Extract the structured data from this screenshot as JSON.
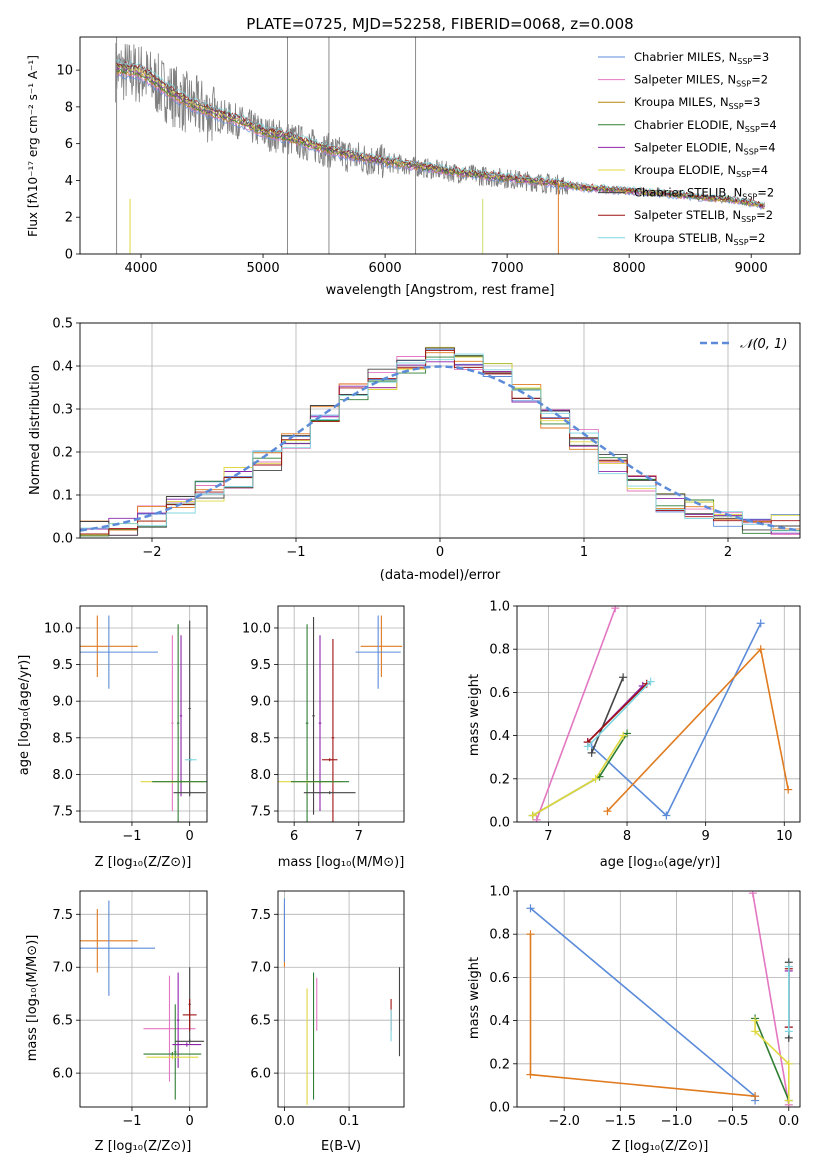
{
  "figure": {
    "title": "PLATE=0725, MJD=52258, FIBERID=0068, z=0.008",
    "panel_spectrum": {
      "xlabel": "wavelength [Angstrom, rest frame]",
      "ylabel": "Flux [fλ10⁻¹⁷ erg cm⁻² s⁻¹ A⁻¹]",
      "xticks": [
        "4000",
        "5000",
        "6000",
        "7000",
        "8000",
        "9000"
      ],
      "yticks": [
        "0",
        "2",
        "4",
        "6",
        "8",
        "10"
      ]
    },
    "panel_hist": {
      "xlabel": "(data-model)/error",
      "ylabel": "Normed distribution",
      "xticks": [
        "−2",
        "−1",
        "0",
        "1",
        "2"
      ],
      "yticks": [
        "0.0",
        "0.1",
        "0.2",
        "0.3",
        "0.4",
        "0.5"
      ],
      "legend": "𝒩(0, 1)"
    },
    "panel_age_Z": {
      "xlabel": "Z [log₁₀(Z/Z⊙)]",
      "ylabel": "age  [log₁₀(age/yr)]",
      "xticks": [
        "−1",
        "0"
      ],
      "yticks": [
        "7.5",
        "8.0",
        "8.5",
        "9.0",
        "9.5",
        "10.0"
      ]
    },
    "panel_age_mass": {
      "xlabel": "mass [log₁₀(M/M⊙)]",
      "xticks": [
        "6",
        "7"
      ],
      "yticks": [
        "7.5",
        "8.0",
        "8.5",
        "9.0",
        "9.5",
        "10.0"
      ]
    },
    "panel_mw_age": {
      "xlabel": "age  [log₁₀(age/yr)]",
      "ylabel": "mass weight",
      "xticks": [
        "7",
        "8",
        "9",
        "10"
      ],
      "yticks": [
        "0.0",
        "0.2",
        "0.4",
        "0.6",
        "0.8",
        "1.0"
      ]
    },
    "panel_mass_Z": {
      "xlabel": "Z [log₁₀(Z/Z⊙)]",
      "ylabel": "mass [log₁₀(M/M⊙)]",
      "xticks": [
        "−1",
        "0"
      ],
      "yticks": [
        "6.0",
        "6.5",
        "7.0",
        "7.5"
      ]
    },
    "panel_mass_ebv": {
      "xlabel": "E(B-V)",
      "xticks": [
        "0.0",
        "0.1"
      ],
      "yticks": [
        "6.0",
        "6.5",
        "7.0",
        "7.5"
      ]
    },
    "panel_mw_Z": {
      "xlabel": "Z [log₁₀(Z/Z⊙)]",
      "ylabel": "mass weight",
      "xticks": [
        "−2.0",
        "−1.5",
        "−1.0",
        "−0.5",
        "0.0"
      ],
      "yticks": [
        "0.0",
        "0.2",
        "0.4",
        "0.6",
        "0.8",
        "1.0"
      ]
    }
  },
  "chart_data": [
    {
      "type": "line",
      "title": "PLATE=0725, MJD=52258, FIBERID=0068, z=0.008",
      "xlabel": "wavelength [Angstrom, rest frame]",
      "ylabel": "Flux [fλ10⁻¹⁷ erg cm⁻² s⁻¹ A⁻¹]",
      "xlim": [
        3500,
        9400
      ],
      "ylim": [
        0,
        11.8
      ],
      "legend_position": "top-right",
      "series": [
        {
          "name": "Chabrier MILES, N_SSP=3",
          "color": "#5b8bd9"
        },
        {
          "name": "Salpeter MILES, N_SSP=2",
          "color": "#e377c2"
        },
        {
          "name": "Kroupa MILES, N_SSP=3",
          "color": "#b8860b"
        },
        {
          "name": "Chabrier ELODIE, N_SSP=4",
          "color": "#2e7d32"
        },
        {
          "name": "Salpeter ELODIE, N_SSP=4",
          "color": "#8e24aa"
        },
        {
          "name": "Kroupa ELODIE, N_SSP=4",
          "color": "#e0d840"
        },
        {
          "name": "Chabrier STELIB, N_SSP=2",
          "color": "#444444"
        },
        {
          "name": "Salpeter STELIB, N_SSP=2",
          "color": "#a01010"
        },
        {
          "name": "Kroupa STELIB, N_SSP=2",
          "color": "#7fd6e0"
        }
      ],
      "data_flux": {
        "x": [
          3800,
          4000,
          4200,
          4400,
          4600,
          4800,
          5000,
          5200,
          5400,
          5600,
          5800,
          6000,
          6200,
          6400,
          6600,
          6800,
          7000,
          7200,
          7400,
          7600,
          7800,
          8000,
          8200,
          8400,
          8600,
          8800,
          9000,
          9100
        ],
        "y": [
          10.0,
          9.8,
          8.9,
          8.1,
          7.6,
          7.2,
          6.6,
          6.3,
          5.9,
          5.5,
          5.2,
          5.0,
          4.8,
          4.6,
          4.4,
          4.25,
          4.1,
          3.95,
          3.8,
          3.6,
          3.5,
          3.4,
          3.3,
          3.2,
          3.05,
          2.95,
          2.75,
          2.6
        ]
      }
    },
    {
      "type": "bar",
      "title": "",
      "xlabel": "(data-model)/error",
      "ylabel": "Normed distribution",
      "xlim": [
        -2.5,
        2.5
      ],
      "ylim": [
        0,
        0.5
      ],
      "legend_position": "top-right",
      "reference_curve": {
        "name": "𝒩(0, 1)",
        "mean": 0,
        "sigma": 1,
        "color": "#5b8bd9"
      },
      "bin_edges": [
        -2.5,
        -2.3,
        -2.1,
        -1.9,
        -1.7,
        -1.5,
        -1.3,
        -1.1,
        -0.9,
        -0.7,
        -0.5,
        -0.3,
        -0.1,
        0.1,
        0.3,
        0.5,
        0.7,
        0.9,
        1.1,
        1.3,
        1.5,
        1.7,
        1.9,
        2.1,
        2.3,
        2.5
      ],
      "values": [
        0.02,
        0.03,
        0.05,
        0.08,
        0.11,
        0.14,
        0.18,
        0.23,
        0.29,
        0.34,
        0.37,
        0.4,
        0.43,
        0.41,
        0.39,
        0.34,
        0.28,
        0.23,
        0.17,
        0.12,
        0.085,
        0.065,
        0.05,
        0.035,
        0.03
      ]
    },
    {
      "type": "scatter",
      "xlabel": "Z [log₁₀(Z/Z⊙)]",
      "ylabel": "age  [log₁₀(age/yr)]",
      "xlim": [
        -1.9,
        0.3
      ],
      "ylim": [
        7.35,
        10.3
      ],
      "points": [
        {
          "x": -1.6,
          "y": 9.75,
          "xerr": 0.7,
          "yerr": 0.42,
          "color": "#e07b20"
        },
        {
          "x": -1.4,
          "y": 9.67,
          "xerr": 0.85,
          "yerr": 0.5,
          "color": "#5b8bd9"
        },
        {
          "x": -0.3,
          "y": 8.7,
          "xerr": 0.02,
          "yerr": 1.2,
          "color": "#e377c2"
        },
        {
          "x": -0.2,
          "y": 8.7,
          "xerr": 0.02,
          "yerr": 1.35,
          "color": "#2e7d32"
        },
        {
          "x": -0.15,
          "y": 8.8,
          "xerr": 0.02,
          "yerr": 1.1,
          "color": "#8e24aa"
        },
        {
          "x": 0.0,
          "y": 8.9,
          "xerr": 0.02,
          "yerr": 1.2,
          "color": "#444444"
        },
        {
          "x": -0.3,
          "y": 7.9,
          "xerr": 0.55,
          "yerr": 0.02,
          "color": "#e0d840"
        },
        {
          "x": -0.15,
          "y": 7.9,
          "xerr": 0.5,
          "yerr": 0.02,
          "color": "#2e7d32"
        },
        {
          "x": 0.0,
          "y": 7.75,
          "xerr": 0.28,
          "yerr": 0.02,
          "color": "#444444"
        },
        {
          "x": 0.02,
          "y": 8.2,
          "xerr": 0.1,
          "yerr": 0.02,
          "color": "#7fd6e0"
        }
      ]
    },
    {
      "type": "scatter",
      "xlabel": "mass [log₁₀(M/M⊙)]",
      "ylabel": "",
      "xlim": [
        5.75,
        7.7
      ],
      "ylim": [
        7.35,
        10.3
      ],
      "points": [
        {
          "x": 7.35,
          "y": 9.75,
          "xerr": 0.32,
          "yerr": 0.42,
          "color": "#e07b20"
        },
        {
          "x": 7.3,
          "y": 9.67,
          "xerr": 0.35,
          "yerr": 0.5,
          "color": "#5b8bd9"
        },
        {
          "x": 6.2,
          "y": 8.7,
          "xerr": 0.02,
          "yerr": 1.35,
          "color": "#2e7d32"
        },
        {
          "x": 6.3,
          "y": 8.8,
          "xerr": 0.02,
          "yerr": 1.35,
          "color": "#444444"
        },
        {
          "x": 6.4,
          "y": 8.7,
          "xerr": 0.02,
          "yerr": 1.2,
          "color": "#8e24aa"
        },
        {
          "x": 6.6,
          "y": 8.5,
          "xerr": 0.02,
          "yerr": 1.35,
          "color": "#a01010"
        },
        {
          "x": 6.2,
          "y": 7.9,
          "xerr": 0.55,
          "yerr": 0.02,
          "color": "#e0d840"
        },
        {
          "x": 6.4,
          "y": 7.9,
          "xerr": 0.45,
          "yerr": 0.02,
          "color": "#2e7d32"
        },
        {
          "x": 6.55,
          "y": 7.75,
          "xerr": 0.4,
          "yerr": 0.02,
          "color": "#444444"
        },
        {
          "x": 6.55,
          "y": 8.2,
          "xerr": 0.12,
          "yerr": 0.02,
          "color": "#a01010"
        }
      ]
    },
    {
      "type": "line",
      "xlabel": "age  [log₁₀(age/yr)]",
      "ylabel": "mass weight",
      "xlim": [
        6.6,
        10.2
      ],
      "ylim": [
        0,
        1.0
      ],
      "series": [
        {
          "name": "Chabrier MILES",
          "color": "#5b8bd9",
          "x": [
            7.55,
            8.5,
            9.7
          ],
          "y": [
            0.35,
            0.03,
            0.92
          ]
        },
        {
          "name": "Salpeter MILES",
          "color": "#e377c2",
          "x": [
            6.85,
            7.85
          ],
          "y": [
            0.01,
            0.99
          ]
        },
        {
          "name": "Kroupa MILES",
          "color": "#e07b20",
          "x": [
            7.75,
            9.7,
            10.05
          ],
          "y": [
            0.05,
            0.8,
            0.15
          ]
        },
        {
          "name": "Chabrier ELODIE",
          "color": "#2e7d32",
          "x": [
            6.8,
            7.65,
            8.0
          ],
          "y": [
            0.03,
            0.21,
            0.41
          ]
        },
        {
          "name": "Salpeter ELODIE",
          "color": "#8e24aa",
          "x": [
            7.5,
            8.2
          ],
          "y": [
            0.37,
            0.63
          ]
        },
        {
          "name": "Kroupa ELODIE",
          "color": "#e0d840",
          "x": [
            6.8,
            7.6,
            7.95
          ],
          "y": [
            0.03,
            0.2,
            0.4
          ]
        },
        {
          "name": "Chabrier STELIB",
          "color": "#444444",
          "x": [
            7.55,
            7.95
          ],
          "y": [
            0.32,
            0.67
          ]
        },
        {
          "name": "Salpeter STELIB",
          "color": "#a01010",
          "x": [
            7.5,
            8.25
          ],
          "y": [
            0.37,
            0.64
          ]
        },
        {
          "name": "Kroupa STELIB",
          "color": "#7fd6e0",
          "x": [
            7.5,
            8.3
          ],
          "y": [
            0.35,
            0.65
          ]
        }
      ]
    },
    {
      "type": "scatter",
      "xlabel": "Z [log₁₀(Z/Z⊙)]",
      "ylabel": "mass [log₁₀(M/M⊙)]",
      "xlim": [
        -1.9,
        0.3
      ],
      "ylim": [
        5.68,
        7.72
      ],
      "points": [
        {
          "x": -1.6,
          "y": 7.25,
          "xerr": 0.7,
          "yerr": 0.3,
          "color": "#e07b20"
        },
        {
          "x": -1.4,
          "y": 7.18,
          "xerr": 0.8,
          "yerr": 0.45,
          "color": "#5b8bd9"
        },
        {
          "x": -0.35,
          "y": 6.42,
          "xerr": 0.45,
          "yerr": 0.5,
          "color": "#e377c2"
        },
        {
          "x": -0.2,
          "y": 6.5,
          "xerr": 0.02,
          "yerr": 0.45,
          "color": "#8e24aa"
        },
        {
          "x": -0.25,
          "y": 6.2,
          "xerr": 0.02,
          "yerr": 0.45,
          "color": "#2e7d32"
        },
        {
          "x": 0.0,
          "y": 6.65,
          "xerr": 0.02,
          "yerr": 0.35,
          "color": "#444444"
        },
        {
          "x": 0.0,
          "y": 6.55,
          "xerr": 0.12,
          "yerr": 0.15,
          "color": "#a01010"
        },
        {
          "x": -0.3,
          "y": 6.18,
          "xerr": 0.5,
          "yerr": 0.02,
          "color": "#2e7d32"
        },
        {
          "x": -0.3,
          "y": 6.15,
          "xerr": 0.45,
          "yerr": 0.02,
          "color": "#e0d840"
        },
        {
          "x": -0.05,
          "y": 6.27,
          "xerr": 0.25,
          "yerr": 0.02,
          "color": "#8e24aa"
        },
        {
          "x": 0.0,
          "y": 6.3,
          "xerr": 0.25,
          "yerr": 0.02,
          "color": "#444444"
        }
      ]
    },
    {
      "type": "scatter",
      "xlabel": "E(B-V)",
      "ylabel": "",
      "xlim": [
        -0.01,
        0.185
      ],
      "ylim": [
        5.68,
        7.72
      ],
      "points": [
        {
          "x": 0.0,
          "y": 7.3,
          "yerr": 0.3,
          "color": "#e07b20"
        },
        {
          "x": 0.0,
          "y": 7.35,
          "yerr": 0.3,
          "color": "#5b8bd9"
        },
        {
          "x": 0.035,
          "y": 6.25,
          "yerr": 0.55,
          "color": "#e0d840"
        },
        {
          "x": 0.045,
          "y": 6.35,
          "yerr": 0.6,
          "color": "#2e7d32"
        },
        {
          "x": 0.05,
          "y": 6.65,
          "yerr": 0.25,
          "color": "#e377c2"
        },
        {
          "x": 0.165,
          "y": 6.55,
          "yerr": 0.15,
          "color": "#a01010"
        },
        {
          "x": 0.165,
          "y": 6.45,
          "yerr": 0.15,
          "color": "#7fd6e0"
        },
        {
          "x": 0.178,
          "y": 6.58,
          "yerr": 0.42,
          "color": "#444444"
        }
      ]
    },
    {
      "type": "line",
      "xlabel": "Z [log₁₀(Z/Z⊙)]",
      "ylabel": "mass weight",
      "xlim": [
        -2.42,
        0.1
      ],
      "ylim": [
        0,
        1.0
      ],
      "series": [
        {
          "name": "Chabrier MILES",
          "color": "#5b8bd9",
          "x": [
            -2.3,
            -0.3,
            -0.3
          ],
          "y": [
            0.92,
            0.05,
            0.03
          ]
        },
        {
          "name": "Salpeter MILES",
          "color": "#e377c2",
          "x": [
            -0.32,
            0.0
          ],
          "y": [
            0.99,
            0.01
          ]
        },
        {
          "name": "Kroupa MILES",
          "color": "#e07b20",
          "x": [
            -2.3,
            -2.3,
            -0.3
          ],
          "y": [
            0.8,
            0.15,
            0.05
          ]
        },
        {
          "name": "Chabrier ELODIE",
          "color": "#2e7d32",
          "x": [
            -0.3,
            0.0
          ],
          "y": [
            0.41,
            0.03
          ]
        },
        {
          "name": "Salpeter ELODIE",
          "color": "#8e24aa",
          "x": [
            0.0,
            0.0
          ],
          "y": [
            0.37,
            0.63
          ]
        },
        {
          "name": "Kroupa ELODIE",
          "color": "#e0d840",
          "x": [
            -0.3,
            -0.3,
            0.0,
            0.0
          ],
          "y": [
            0.4,
            0.35,
            0.2,
            0.03
          ]
        },
        {
          "name": "Chabrier STELIB",
          "color": "#444444",
          "x": [
            0.0,
            0.0
          ],
          "y": [
            0.32,
            0.67
          ]
        },
        {
          "name": "Salpeter STELIB",
          "color": "#a01010",
          "x": [
            0.0,
            0.0
          ],
          "y": [
            0.37,
            0.64
          ]
        },
        {
          "name": "Kroupa STELIB",
          "color": "#7fd6e0",
          "x": [
            0.0,
            0.0
          ],
          "y": [
            0.35,
            0.65
          ]
        }
      ]
    }
  ]
}
